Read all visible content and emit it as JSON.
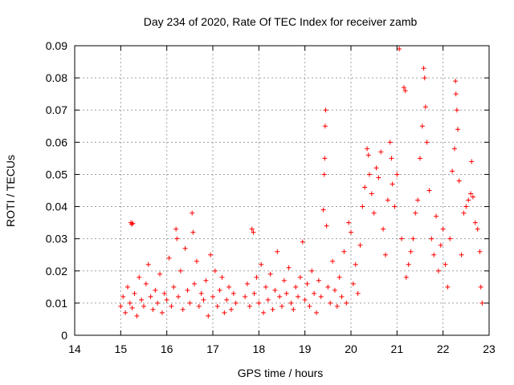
{
  "chart_data": {
    "type": "scatter",
    "title": "Day 234 of 2020, Rate Of TEC Index for receiver zamb",
    "xlabel": "GPS time / hours",
    "ylabel": "ROTI / TECUs",
    "xlim": [
      14,
      23
    ],
    "ylim": [
      0,
      0.09
    ],
    "x_ticks": [
      "14",
      "15",
      "16",
      "17",
      "18",
      "19",
      "20",
      "21",
      "22",
      "23"
    ],
    "y_ticks": [
      "0",
      "0.01",
      "0.02",
      "0.03",
      "0.04",
      "0.05",
      "0.06",
      "0.07",
      "0.08",
      "0.09"
    ],
    "grid": true,
    "marker": "+",
    "marker_color": "#ff0000",
    "series": [
      {
        "name": "ROTI",
        "points": [
          [
            15.0,
            0.009
          ],
          [
            15.05,
            0.012
          ],
          [
            15.1,
            0.007
          ],
          [
            15.15,
            0.015
          ],
          [
            15.2,
            0.01
          ],
          [
            15.25,
            0.0085
          ],
          [
            15.22,
            0.035
          ],
          [
            15.24,
            0.0345
          ],
          [
            15.26,
            0.0348
          ],
          [
            15.3,
            0.013
          ],
          [
            15.35,
            0.006
          ],
          [
            15.4,
            0.018
          ],
          [
            15.45,
            0.011
          ],
          [
            15.5,
            0.009
          ],
          [
            15.55,
            0.016
          ],
          [
            15.6,
            0.022
          ],
          [
            15.65,
            0.012
          ],
          [
            15.7,
            0.008
          ],
          [
            15.75,
            0.014
          ],
          [
            15.8,
            0.01
          ],
          [
            15.85,
            0.019
          ],
          [
            15.9,
            0.007
          ],
          [
            15.95,
            0.013
          ],
          [
            16.0,
            0.011
          ],
          [
            16.05,
            0.024
          ],
          [
            16.1,
            0.009
          ],
          [
            16.15,
            0.015
          ],
          [
            16.2,
            0.033
          ],
          [
            16.22,
            0.03
          ],
          [
            16.25,
            0.012
          ],
          [
            16.3,
            0.02
          ],
          [
            16.35,
            0.008
          ],
          [
            16.4,
            0.027
          ],
          [
            16.45,
            0.014
          ],
          [
            16.5,
            0.01
          ],
          [
            16.55,
            0.038
          ],
          [
            16.57,
            0.032
          ],
          [
            16.6,
            0.016
          ],
          [
            16.65,
            0.023
          ],
          [
            16.7,
            0.009
          ],
          [
            16.75,
            0.013
          ],
          [
            16.8,
            0.011
          ],
          [
            16.85,
            0.017
          ],
          [
            16.9,
            0.006
          ],
          [
            16.95,
            0.025
          ],
          [
            17.0,
            0.012
          ],
          [
            17.05,
            0.02
          ],
          [
            17.1,
            0.009
          ],
          [
            17.15,
            0.014
          ],
          [
            17.2,
            0.018
          ],
          [
            17.25,
            0.007
          ],
          [
            17.3,
            0.011
          ],
          [
            17.35,
            0.015
          ],
          [
            17.4,
            0.008
          ],
          [
            17.45,
            0.013
          ],
          [
            17.5,
            0.01
          ],
          [
            17.7,
            0.012
          ],
          [
            17.75,
            0.016
          ],
          [
            17.8,
            0.009
          ],
          [
            17.85,
            0.033
          ],
          [
            17.88,
            0.032
          ],
          [
            17.9,
            0.013
          ],
          [
            17.95,
            0.018
          ],
          [
            18.0,
            0.01
          ],
          [
            18.05,
            0.022
          ],
          [
            18.1,
            0.007
          ],
          [
            18.15,
            0.015
          ],
          [
            18.2,
            0.011
          ],
          [
            18.25,
            0.019
          ],
          [
            18.3,
            0.008
          ],
          [
            18.35,
            0.014
          ],
          [
            18.4,
            0.026
          ],
          [
            18.45,
            0.012
          ],
          [
            18.5,
            0.009
          ],
          [
            18.55,
            0.017
          ],
          [
            18.6,
            0.013
          ],
          [
            18.65,
            0.021
          ],
          [
            18.7,
            0.01
          ],
          [
            18.75,
            0.008
          ],
          [
            18.8,
            0.015
          ],
          [
            18.85,
            0.012
          ],
          [
            18.9,
            0.018
          ],
          [
            18.95,
            0.029
          ],
          [
            19.0,
            0.011
          ],
          [
            19.05,
            0.016
          ],
          [
            19.1,
            0.009
          ],
          [
            19.15,
            0.02
          ],
          [
            19.2,
            0.013
          ],
          [
            19.25,
            0.007
          ],
          [
            19.3,
            0.017
          ],
          [
            19.35,
            0.012
          ],
          [
            19.4,
            0.039
          ],
          [
            19.42,
            0.05
          ],
          [
            19.43,
            0.055
          ],
          [
            19.44,
            0.065
          ],
          [
            19.45,
            0.07
          ],
          [
            19.47,
            0.034
          ],
          [
            19.5,
            0.015
          ],
          [
            19.55,
            0.01
          ],
          [
            19.6,
            0.023
          ],
          [
            19.65,
            0.014
          ],
          [
            19.7,
            0.009
          ],
          [
            19.75,
            0.018
          ],
          [
            19.8,
            0.012
          ],
          [
            19.85,
            0.026
          ],
          [
            19.9,
            0.01
          ],
          [
            19.95,
            0.035
          ],
          [
            20.0,
            0.032
          ],
          [
            20.05,
            0.016
          ],
          [
            20.1,
            0.022
          ],
          [
            20.15,
            0.013
          ],
          [
            20.2,
            0.028
          ],
          [
            20.25,
            0.04
          ],
          [
            20.3,
            0.046
          ],
          [
            20.35,
            0.058
          ],
          [
            20.38,
            0.056
          ],
          [
            20.4,
            0.05
          ],
          [
            20.45,
            0.044
          ],
          [
            20.5,
            0.038
          ],
          [
            20.55,
            0.052
          ],
          [
            20.6,
            0.049
          ],
          [
            20.65,
            0.057
          ],
          [
            20.7,
            0.033
          ],
          [
            20.75,
            0.025
          ],
          [
            20.8,
            0.042
          ],
          [
            20.85,
            0.06
          ],
          [
            20.88,
            0.055
          ],
          [
            20.9,
            0.047
          ],
          [
            20.95,
            0.04
          ],
          [
            21.0,
            0.05
          ],
          [
            21.05,
            0.089
          ],
          [
            21.1,
            0.03
          ],
          [
            21.15,
            0.077
          ],
          [
            21.18,
            0.076
          ],
          [
            21.2,
            0.018
          ],
          [
            21.25,
            0.022
          ],
          [
            21.3,
            0.026
          ],
          [
            21.35,
            0.03
          ],
          [
            21.4,
            0.038
          ],
          [
            21.45,
            0.042
          ],
          [
            21.5,
            0.055
          ],
          [
            21.55,
            0.065
          ],
          [
            21.58,
            0.083
          ],
          [
            21.6,
            0.08
          ],
          [
            21.62,
            0.071
          ],
          [
            21.65,
            0.06
          ],
          [
            21.7,
            0.045
          ],
          [
            21.75,
            0.03
          ],
          [
            21.8,
            0.025
          ],
          [
            21.85,
            0.037
          ],
          [
            21.9,
            0.02
          ],
          [
            21.95,
            0.028
          ],
          [
            22.0,
            0.033
          ],
          [
            22.05,
            0.022
          ],
          [
            22.1,
            0.015
          ],
          [
            22.15,
            0.03
          ],
          [
            22.2,
            0.051
          ],
          [
            22.25,
            0.058
          ],
          [
            22.27,
            0.079
          ],
          [
            22.28,
            0.075
          ],
          [
            22.3,
            0.07
          ],
          [
            22.32,
            0.064
          ],
          [
            22.35,
            0.048
          ],
          [
            22.4,
            0.025
          ],
          [
            22.45,
            0.038
          ],
          [
            22.5,
            0.04
          ],
          [
            22.55,
            0.042
          ],
          [
            22.6,
            0.044
          ],
          [
            22.62,
            0.054
          ],
          [
            22.65,
            0.043
          ],
          [
            22.7,
            0.035
          ],
          [
            22.75,
            0.033
          ],
          [
            22.8,
            0.026
          ],
          [
            22.82,
            0.015
          ],
          [
            22.85,
            0.01
          ]
        ]
      }
    ]
  }
}
